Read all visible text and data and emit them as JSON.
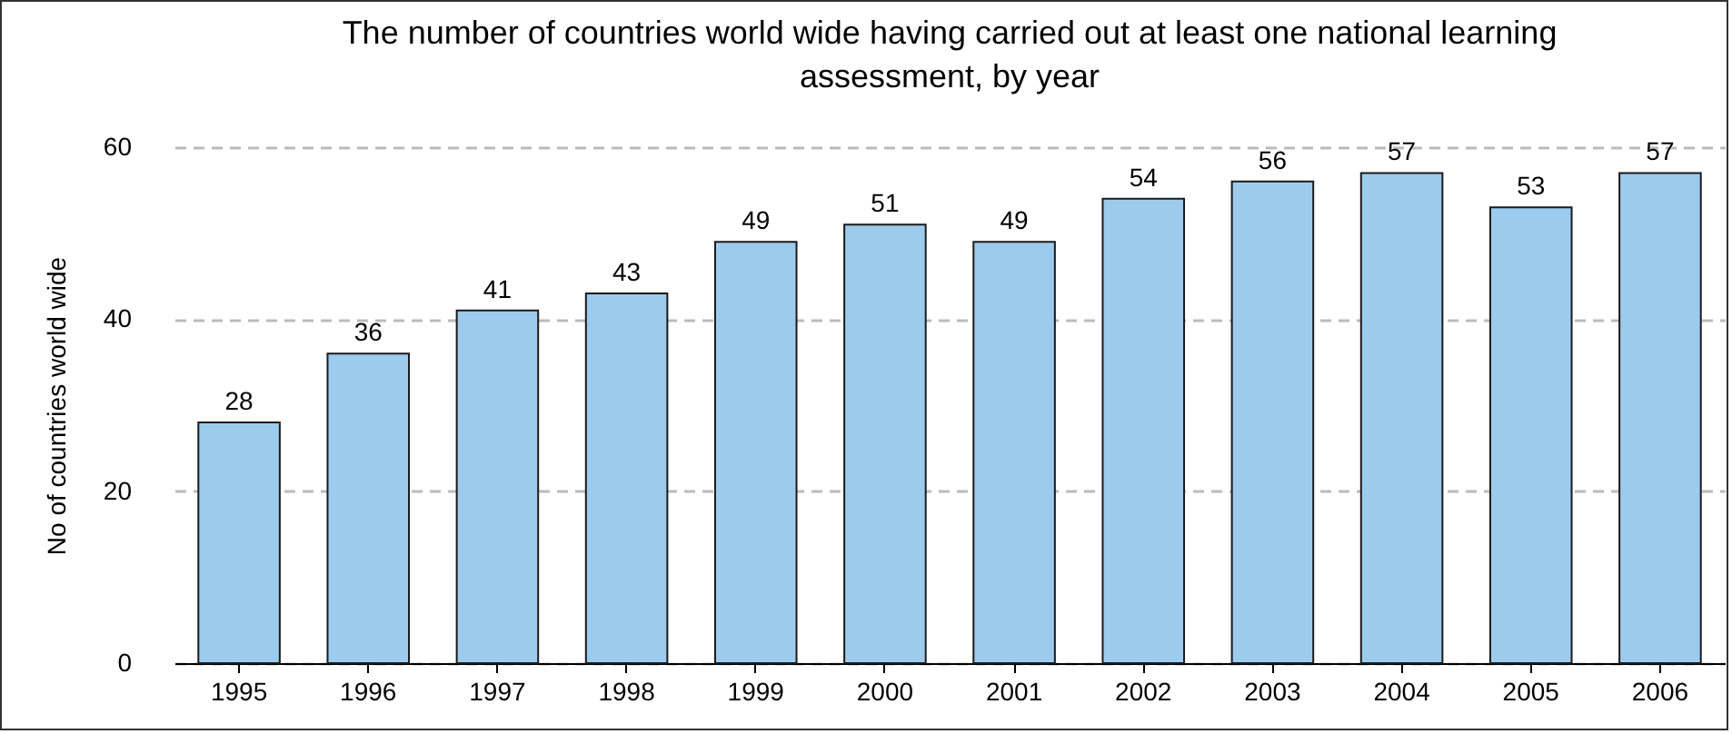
{
  "chart_data": {
    "type": "bar",
    "title": "The number of countries world wide having carried out at least one national learning assessment, by year",
    "ylabel": "No of countries world wide",
    "categories": [
      "1995",
      "1996",
      "1997",
      "1998",
      "1999",
      "2000",
      "2001",
      "2002",
      "2003",
      "2004",
      "2005",
      "2006"
    ],
    "values": [
      28,
      36,
      41,
      43,
      49,
      51,
      49,
      54,
      56,
      57,
      53,
      57
    ],
    "color": "#9dcbee",
    "ylim": [
      0,
      60
    ],
    "yticks": [
      0,
      20,
      40,
      60
    ],
    "grid": "y",
    "data_labels": true
  }
}
